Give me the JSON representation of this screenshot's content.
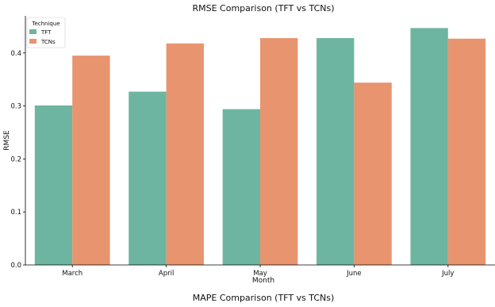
{
  "chart_data": {
    "type": "bar",
    "title": "RMSE Comparison (TFT vs TCNs)",
    "xlabel": "Month",
    "ylabel": "RMSE",
    "categories": [
      "March",
      "April",
      "May",
      "June",
      "July"
    ],
    "series": [
      {
        "name": "TFT",
        "values": [
          0.301,
          0.327,
          0.294,
          0.428,
          0.447
        ],
        "color": "#6db5a0"
      },
      {
        "name": "TCNs",
        "values": [
          0.395,
          0.418,
          0.428,
          0.344,
          0.427
        ],
        "color": "#e8946f"
      }
    ],
    "ylim": [
      0,
      0.47
    ],
    "yticks": [
      "0.0",
      "0.1",
      "0.2",
      "0.3",
      "0.4"
    ],
    "legend_title": "Technique",
    "legend_position": "top-left",
    "grid": false
  },
  "caption": "MAPE Comparison (TFT vs TCNs)"
}
